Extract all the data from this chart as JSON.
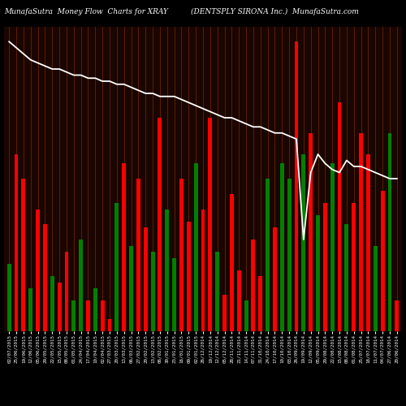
{
  "title_left": "MunafaSutra  Money Flow  Charts for XRAY",
  "title_right": "(DENTSPLY SIRONA Inc.)  MunafaSutra.com",
  "bg_color": "#000000",
  "bar_area_bg": "#1a0500",
  "grid_color": "#7B3000",
  "line_color": "#ffffff",
  "bar_colors": [
    "green",
    "red",
    "red",
    "green",
    "red",
    "red",
    "green",
    "red",
    "red",
    "green",
    "green",
    "red",
    "green",
    "red",
    "red",
    "green",
    "red",
    "green",
    "red",
    "red",
    "green",
    "red",
    "green",
    "green",
    "red",
    "red",
    "green",
    "red",
    "red",
    "green",
    "red",
    "red",
    "red",
    "green",
    "red",
    "red",
    "green",
    "red",
    "green",
    "green",
    "red",
    "green",
    "red",
    "green",
    "red",
    "green",
    "red",
    "green",
    "red",
    "red",
    "red",
    "green",
    "red",
    "green",
    "red"
  ],
  "bar_heights": [
    0.22,
    0.58,
    0.5,
    0.14,
    0.4,
    0.35,
    0.18,
    0.16,
    0.26,
    0.1,
    0.3,
    0.1,
    0.14,
    0.1,
    0.04,
    0.42,
    0.55,
    0.28,
    0.5,
    0.34,
    0.26,
    0.7,
    0.4,
    0.24,
    0.5,
    0.36,
    0.55,
    0.4,
    0.7,
    0.26,
    0.12,
    0.45,
    0.2,
    0.1,
    0.3,
    0.18,
    0.5,
    0.34,
    0.55,
    0.5,
    0.95,
    0.58,
    0.65,
    0.38,
    0.42,
    0.55,
    0.75,
    0.35,
    0.42,
    0.65,
    0.58,
    0.28,
    0.46,
    0.65,
    0.1
  ],
  "line_y": [
    0.95,
    0.93,
    0.91,
    0.89,
    0.88,
    0.87,
    0.86,
    0.86,
    0.85,
    0.84,
    0.84,
    0.83,
    0.83,
    0.82,
    0.82,
    0.81,
    0.81,
    0.8,
    0.79,
    0.78,
    0.78,
    0.77,
    0.77,
    0.77,
    0.76,
    0.75,
    0.74,
    0.73,
    0.72,
    0.71,
    0.7,
    0.7,
    0.69,
    0.68,
    0.67,
    0.67,
    0.66,
    0.65,
    0.65,
    0.64,
    0.63,
    0.3,
    0.52,
    0.58,
    0.55,
    0.53,
    0.52,
    0.56,
    0.54,
    0.54,
    0.53,
    0.52,
    0.51,
    0.5,
    0.5
  ],
  "n_bars": 55,
  "ylim": [
    0,
    1.0
  ],
  "tick_labels": [
    "02/07/2015",
    "25/06/2015",
    "19/06/2015",
    "12/06/2015",
    "05/06/2015",
    "29/05/2015",
    "22/05/2015",
    "15/05/2015",
    "08/05/2015",
    "01/05/2015",
    "24/04/2015",
    "17/04/2015",
    "10/04/2015",
    "02/04/2015",
    "27/03/2015",
    "20/03/2015",
    "13/03/2015",
    "06/03/2015",
    "27/02/2015",
    "20/02/2015",
    "13/02/2015",
    "06/02/2015",
    "30/01/2015",
    "23/01/2015",
    "16/01/2015",
    "09/01/2015",
    "02/01/2015",
    "26/12/2014",
    "19/12/2014",
    "12/12/2014",
    "05/12/2014",
    "28/11/2014",
    "21/11/2014",
    "14/11/2014",
    "07/11/2014",
    "31/10/2014",
    "24/10/2014",
    "17/10/2014",
    "10/10/2014",
    "03/10/2014",
    "26/09/2014",
    "19/09/2014",
    "12/09/2014",
    "05/09/2014",
    "29/08/2014",
    "22/08/2014",
    "15/08/2014",
    "08/08/2014",
    "01/08/2014",
    "25/07/2014",
    "18/07/2014",
    "11/07/2014",
    "04/07/2014",
    "27/06/2014",
    "20/06/2014"
  ],
  "title_fontsize": 6.5,
  "tick_fontsize": 4.2
}
